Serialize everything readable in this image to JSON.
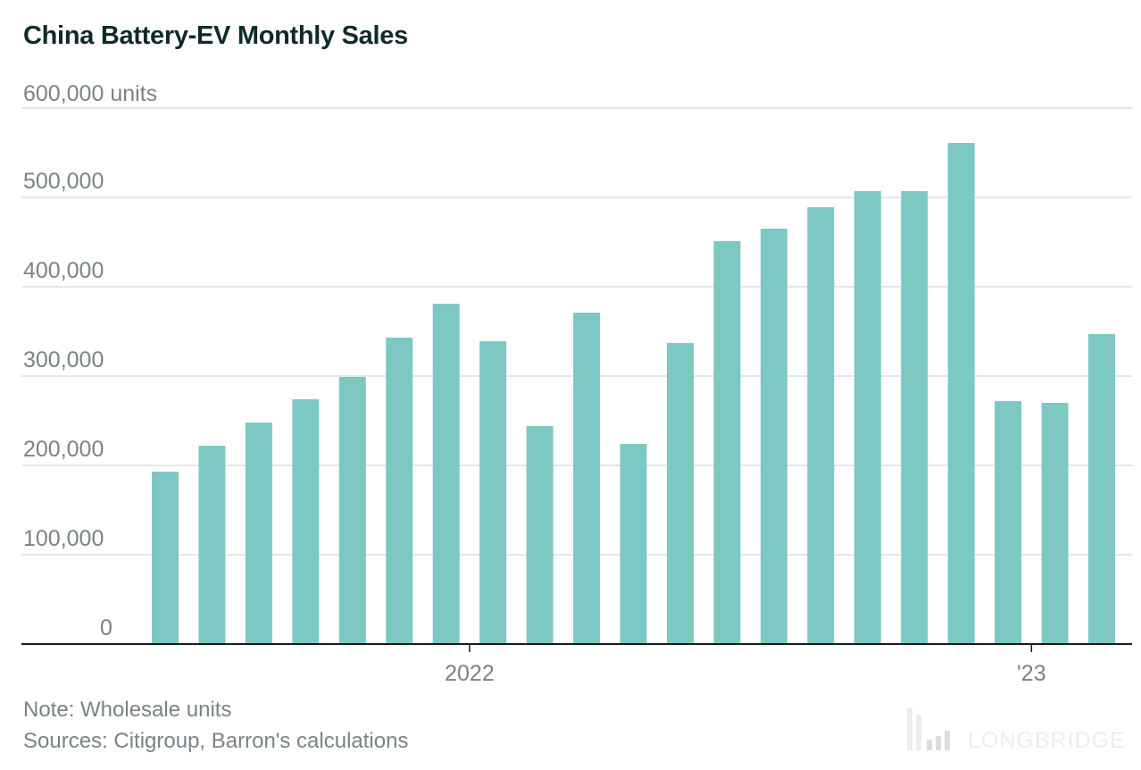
{
  "title": "China Battery-EV Monthly Sales",
  "note": "Note: Wholesale units",
  "sources": "Sources: Citigroup, Barron's calculations",
  "watermark": "LONGBRIDGE",
  "colors": {
    "bar": "#7ec8c3",
    "grid": "#dcdfe1",
    "axis": "#1a1a1a",
    "text": "#7a8386",
    "title": "#0f2a2a"
  },
  "chart_data": {
    "type": "bar",
    "title": "China Battery-EV Monthly Sales",
    "unit": "units",
    "ylim": [
      0,
      600000
    ],
    "yticks": [
      0,
      100000,
      200000,
      300000,
      400000,
      500000,
      600000
    ],
    "ytick_labels": [
      "0",
      "100,000",
      "200,000",
      "300,000",
      "400,000",
      "500,000",
      "600,000 units"
    ],
    "x_tick_labels": [
      {
        "label": "2022",
        "index": 7
      },
      {
        "label": "'23",
        "index": 19
      }
    ],
    "grid": true,
    "values": [
      193000,
      222000,
      248000,
      274000,
      299000,
      343000,
      381000,
      339000,
      244000,
      371000,
      224000,
      337000,
      451000,
      465000,
      489000,
      507000,
      507000,
      561000,
      272000,
      270000,
      347000
    ]
  }
}
